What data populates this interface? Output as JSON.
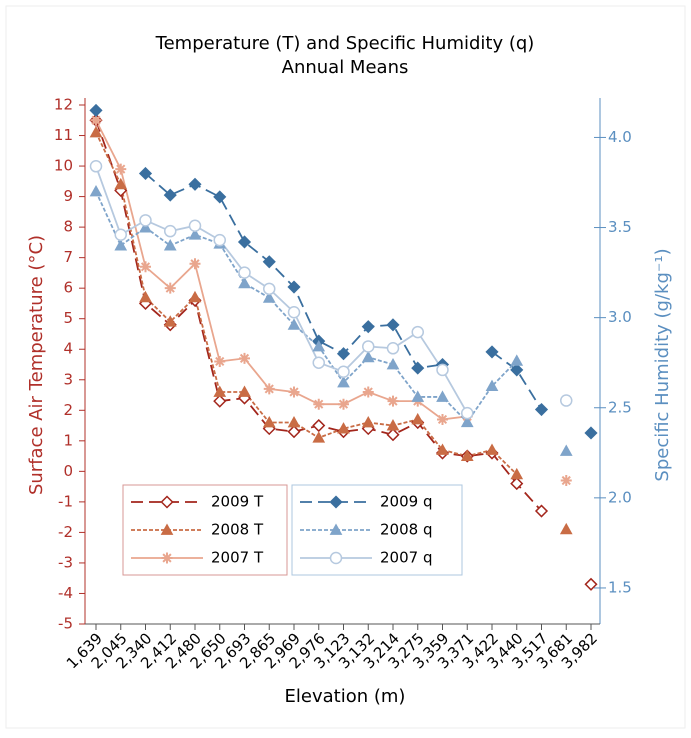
{
  "chart_data": {
    "type": "line",
    "title": "Temperature (T) and Specific Humidity (q)",
    "subtitle": "Annual Means",
    "x_label": "Elevation (m)",
    "y_label": "Surface Air Temperature (°C)",
    "y2_label": "Specific Humidity (g/kg⁻¹)",
    "y_axis_color": "#b0302a",
    "y2_axis_color": "#5b8fc0",
    "categories": [
      "1,639",
      "2,045",
      "2,340",
      "2,412",
      "2,480",
      "2,650",
      "2,693",
      "2,865",
      "2,969",
      "2,976",
      "3,123",
      "3,132",
      "3,214",
      "3,275",
      "3,359",
      "3,371",
      "3,422",
      "3,440",
      "3,517",
      "3,681",
      "3,982"
    ],
    "ylim": [
      -5,
      12
    ],
    "yticks": [
      -5,
      -4,
      -3,
      -2,
      -1,
      0,
      1,
      2,
      3,
      4,
      5,
      6,
      7,
      8,
      9,
      10,
      11,
      12
    ],
    "y2lim": [
      1.3,
      4.18
    ],
    "y2ticks": [
      1.5,
      {
        "value": 2,
        "label": "2.0"
      },
      2.5,
      {
        "value": 3,
        "label": "3.0"
      },
      3.5,
      {
        "value": 4,
        "label": "4.0"
      }
    ],
    "series": [
      {
        "name": "2009 T",
        "color": "#a3261c",
        "marker": "diamond-open",
        "line_style": "dashed",
        "values": [
          11.5,
          9.2,
          5.5,
          4.8,
          5.6,
          2.3,
          2.4,
          1.4,
          1.3,
          1.5,
          1.3,
          1.4,
          1.2,
          1.6,
          0.6,
          0.5,
          0.6,
          -0.4,
          -1.3,
          null,
          -3.7
        ]
      },
      {
        "name": "2008 T",
        "color": "#c96c45",
        "marker": "triangle",
        "line_style": "dotted",
        "values": [
          11.1,
          9.4,
          5.7,
          4.9,
          5.7,
          2.6,
          2.6,
          1.6,
          1.6,
          1.1,
          1.4,
          1.6,
          1.5,
          1.7,
          0.7,
          0.5,
          0.7,
          -0.1,
          null,
          -1.9,
          null
        ]
      },
      {
        "name": "2007 T",
        "color": "#e9a68e",
        "marker": "asterisk",
        "line_style": "solid",
        "values": [
          11.5,
          9.9,
          6.7,
          6.0,
          6.8,
          3.6,
          3.7,
          2.7,
          2.6,
          2.2,
          2.2,
          2.6,
          2.3,
          2.3,
          1.7,
          1.8,
          null,
          null,
          null,
          -0.3,
          null
        ]
      },
      {
        "name": "2009 q",
        "color": "#3a6f9f",
        "marker": "diamond",
        "line_style": "dashed",
        "axis": "y2",
        "values": [
          4.15,
          null,
          3.8,
          3.68,
          3.74,
          3.67,
          3.42,
          3.31,
          3.17,
          2.87,
          2.8,
          2.95,
          2.96,
          2.72,
          2.74,
          null,
          2.81,
          2.71,
          2.49,
          null,
          2.36
        ]
      },
      {
        "name": "2008 q",
        "color": "#7fa4ca",
        "marker": "triangle",
        "line_style": "dotted",
        "axis": "y2",
        "values": [
          3.7,
          3.4,
          3.5,
          3.4,
          3.46,
          3.41,
          3.19,
          3.11,
          2.96,
          2.84,
          2.64,
          2.78,
          2.74,
          2.56,
          2.56,
          2.42,
          2.62,
          2.76,
          null,
          2.26,
          null
        ]
      },
      {
        "name": "2007 q",
        "color": "#b6c9df",
        "marker": "circle-open",
        "line_style": "solid",
        "axis": "y2",
        "values": [
          3.84,
          3.46,
          3.54,
          3.48,
          3.51,
          3.43,
          3.25,
          3.16,
          3.03,
          2.75,
          2.7,
          2.84,
          2.83,
          2.92,
          2.71,
          2.47,
          null,
          null,
          null,
          2.54,
          null
        ]
      }
    ]
  }
}
